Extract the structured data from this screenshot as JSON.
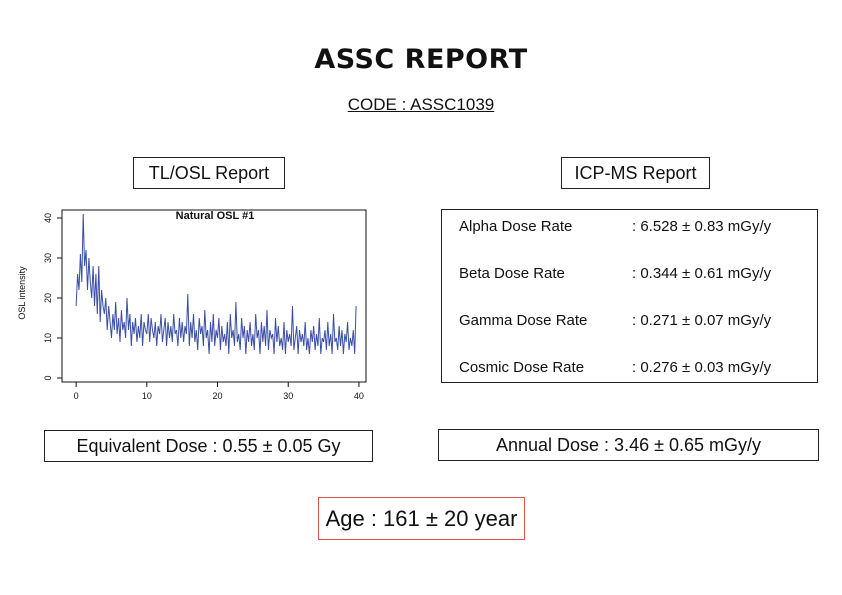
{
  "report": {
    "title": "ASSC REPORT",
    "code": "CODE : ASSC1039"
  },
  "tlosl": {
    "label": "TL/OSL Report"
  },
  "icpms": {
    "label": "ICP-MS Report",
    "rows": [
      {
        "label": "Alpha Dose Rate",
        "value": ": 6.528 ± 0.83 mGy/y"
      },
      {
        "label": "Beta Dose Rate",
        "value": ": 0.344 ± 0.61 mGy/y"
      },
      {
        "label": "Gamma Dose Rate",
        "value": ": 0.271 ± 0.07 mGy/y"
      },
      {
        "label": "Cosmic Dose Rate",
        "value": ": 0.276 ± 0.03 mGy/y"
      }
    ]
  },
  "summary": {
    "equivalent_dose": "Equivalent Dose : 0.55 ± 0.05 Gy",
    "annual_dose": "Annual Dose : 3.46 ± 0.65 mGy/y",
    "age": "Age : 161 ± 20 year",
    "age_border_color": "#d9534f"
  },
  "chart_data": {
    "type": "line",
    "title": "Natural OSL #1",
    "xlabel": "",
    "ylabel": "OSL intensity",
    "xlim": [
      -2,
      41
    ],
    "ylim": [
      -1,
      42
    ],
    "xticks": [
      0,
      10,
      20,
      30,
      40
    ],
    "yticks": [
      0,
      10,
      20,
      30,
      40
    ],
    "line_color": "#3a4ea5",
    "grid": false,
    "series": [
      {
        "x_start": 0,
        "x_step": 0.2,
        "values": [
          18,
          26,
          22,
          31,
          24,
          41,
          28,
          32,
          22,
          30,
          24,
          20,
          28,
          18,
          26,
          16,
          28,
          14,
          22,
          18,
          16,
          20,
          12,
          18,
          14,
          10,
          16,
          12,
          19,
          11,
          15,
          9,
          17,
          12,
          14,
          10,
          20,
          12,
          16,
          8,
          14,
          11,
          15,
          9,
          13,
          10,
          16,
          8,
          14,
          12,
          11,
          16,
          9,
          15,
          12,
          10,
          14,
          8,
          13,
          11,
          16,
          9,
          12,
          15,
          8,
          14,
          10,
          13,
          9,
          16,
          11,
          12,
          8,
          15,
          10,
          14,
          9,
          13,
          11,
          21,
          8,
          14,
          10,
          16,
          9,
          12,
          7,
          15,
          11,
          13,
          8,
          17,
          10,
          12,
          6,
          14,
          9,
          16,
          8,
          12,
          10,
          15,
          7,
          13,
          9,
          11,
          8,
          14,
          6,
          16,
          10,
          12,
          8,
          19,
          9,
          11,
          7,
          15,
          10,
          13,
          6,
          12,
          9,
          14,
          8,
          11,
          7,
          16,
          10,
          12,
          6,
          14,
          9,
          13,
          8,
          17,
          7,
          12,
          10,
          11,
          6,
          15,
          9,
          13,
          8,
          10,
          7,
          14,
          6,
          12,
          9,
          11,
          8,
          18,
          7,
          10,
          13,
          6,
          12,
          9,
          11,
          8,
          14,
          7,
          10,
          6,
          12,
          9,
          13,
          7,
          11,
          8,
          15,
          6,
          10,
          9,
          12,
          7,
          14,
          8,
          11,
          6,
          16,
          9,
          10,
          7,
          13,
          8,
          12,
          6,
          11,
          9,
          14,
          7,
          10,
          8,
          12,
          6,
          18
        ]
      }
    ]
  }
}
